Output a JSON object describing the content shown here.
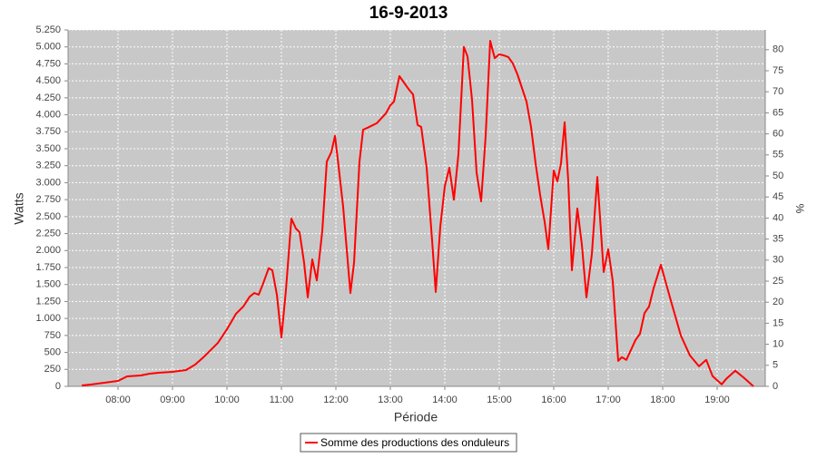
{
  "chart_data": {
    "type": "line",
    "title": "16-9-2013",
    "xlabel": "Période",
    "ylabel": "Watts",
    "y2label": "%",
    "x": [
      "07:20",
      "07:30",
      "07:45",
      "08:00",
      "08:10",
      "08:25",
      "08:35",
      "08:45",
      "09:00",
      "09:15",
      "09:25",
      "09:35",
      "09:50",
      "10:00",
      "10:10",
      "10:18",
      "10:25",
      "10:30",
      "10:35",
      "10:40",
      "10:46",
      "10:50",
      "10:55",
      "11:00",
      "11:05",
      "11:11",
      "11:16",
      "11:20",
      "11:25",
      "11:29",
      "11:34",
      "11:39",
      "11:45",
      "11:50",
      "11:55",
      "11:59",
      "12:02",
      "12:08",
      "12:16",
      "12:20",
      "12:26",
      "12:30",
      "12:35",
      "12:45",
      "12:55",
      "13:00",
      "13:04",
      "13:10",
      "13:15",
      "13:20",
      "13:25",
      "13:30",
      "13:34",
      "13:40",
      "13:46",
      "13:50",
      "13:55",
      "14:00",
      "14:05",
      "14:10",
      "14:15",
      "14:21",
      "14:25",
      "14:30",
      "14:35",
      "14:40",
      "14:45",
      "14:50",
      "14:55",
      "15:00",
      "15:05",
      "15:10",
      "15:15",
      "15:20",
      "15:25",
      "15:30",
      "15:35",
      "15:40",
      "15:45",
      "15:50",
      "15:54",
      "16:00",
      "16:04",
      "16:08",
      "16:12",
      "16:16",
      "16:20",
      "16:26",
      "16:31",
      "16:36",
      "16:42",
      "16:48",
      "16:55",
      "17:00",
      "17:05",
      "17:11",
      "17:15",
      "17:20",
      "17:30",
      "17:35",
      "17:40",
      "17:45",
      "17:50",
      "17:58",
      "18:03",
      "18:10",
      "18:20",
      "18:30",
      "18:40",
      "18:48",
      "18:55",
      "19:05",
      "19:10",
      "19:20",
      "19:30",
      "19:40"
    ],
    "series": [
      {
        "name": "Somme des productions des onduleurs",
        "color": "#ff0000",
        "values": [
          13,
          27,
          53,
          80,
          147,
          160,
          187,
          200,
          214,
          240,
          320,
          440,
          640,
          840,
          1070,
          1175,
          1320,
          1375,
          1350,
          1520,
          1740,
          1710,
          1350,
          720,
          1420,
          2470,
          2325,
          2270,
          1820,
          1310,
          1870,
          1560,
          2285,
          3310,
          3450,
          3690,
          3355,
          2645,
          1375,
          1820,
          3310,
          3780,
          3810,
          3875,
          4020,
          4140,
          4195,
          4570,
          4475,
          4380,
          4300,
          3850,
          3820,
          3220,
          2150,
          1390,
          2350,
          2950,
          3220,
          2750,
          3420,
          5000,
          4860,
          4220,
          3150,
          2725,
          3690,
          5090,
          4835,
          4890,
          4875,
          4850,
          4755,
          4595,
          4395,
          4195,
          3820,
          3285,
          2820,
          2420,
          2020,
          3180,
          3020,
          3285,
          3890,
          3020,
          1710,
          2620,
          2085,
          1310,
          1950,
          3085,
          1685,
          2020,
          1550,
          375,
          430,
          390,
          680,
          775,
          1080,
          1175,
          1445,
          1790,
          1550,
          1215,
          750,
          455,
          295,
          390,
          150,
          30,
          110,
          230,
          120,
          0
        ]
      }
    ],
    "xlim": [
      "07:05",
      "19:53"
    ],
    "xticks": [
      "08:00",
      "09:00",
      "10:00",
      "11:00",
      "12:00",
      "13:00",
      "14:00",
      "15:00",
      "16:00",
      "17:00",
      "18:00",
      "19:00"
    ],
    "ylim": [
      0,
      5250
    ],
    "yticks": [
      0,
      250,
      500,
      750,
      {
        "value": 1000,
        "label": "1.000"
      },
      {
        "value": 1250,
        "label": "1.250"
      },
      {
        "value": 1500,
        "label": "1.500"
      },
      {
        "value": 1750,
        "label": "1.750"
      },
      {
        "value": 2000,
        "label": "2.000"
      },
      {
        "value": 2250,
        "label": "2.250"
      },
      {
        "value": 2500,
        "label": "2.500"
      },
      {
        "value": 2750,
        "label": "2.750"
      },
      {
        "value": 3000,
        "label": "3.000"
      },
      {
        "value": 3250,
        "label": "3.250"
      },
      {
        "value": 3500,
        "label": "3.500"
      },
      {
        "value": 3750,
        "label": "3.750"
      },
      {
        "value": 4000,
        "label": "4.000"
      },
      {
        "value": 4250,
        "label": "4.250"
      },
      {
        "value": 4500,
        "label": "4.500"
      },
      {
        "value": 4750,
        "label": "4.750"
      },
      {
        "value": 5000,
        "label": "5.000"
      },
      {
        "value": 5250,
        "label": "5.250"
      }
    ],
    "y2lim": [
      0,
      84.7
    ],
    "y2ticks": [
      0,
      5,
      10,
      15,
      20,
      25,
      30,
      35,
      40,
      45,
      50,
      55,
      60,
      65,
      70,
      75,
      80
    ],
    "grid": true
  }
}
